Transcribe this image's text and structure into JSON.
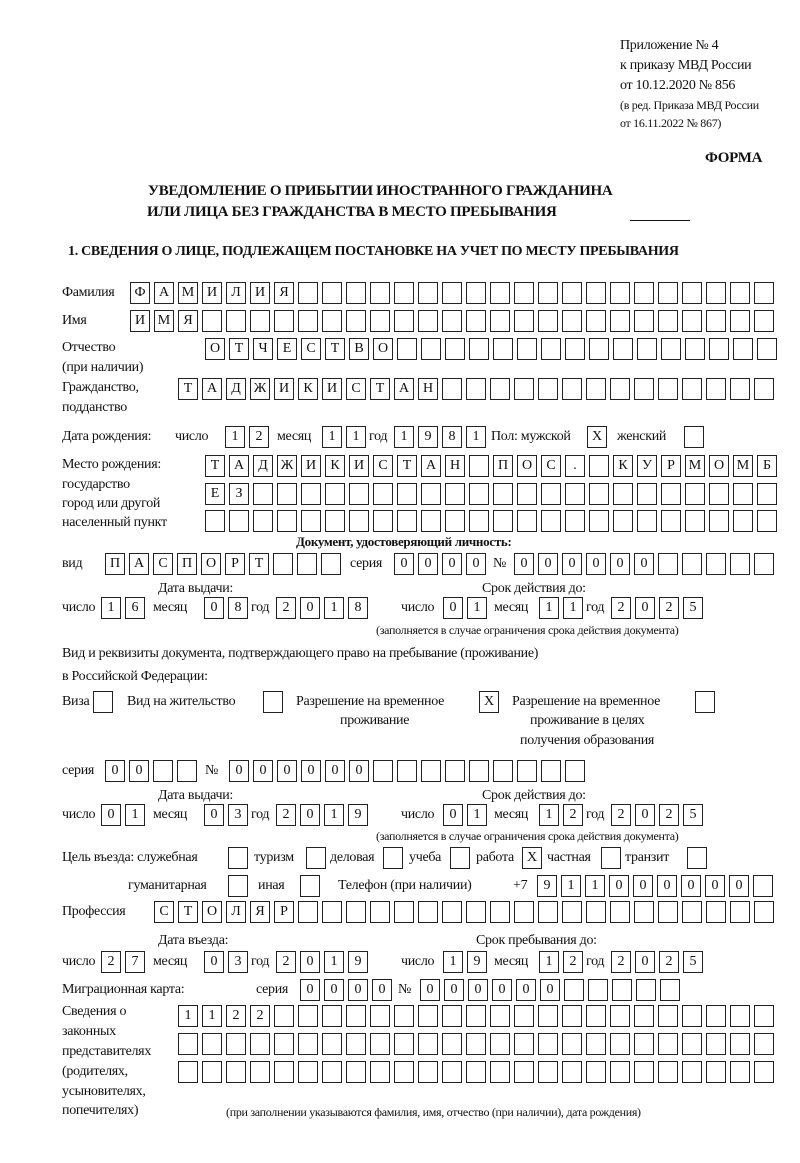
{
  "header": {
    "appendix": "Приложение № 4",
    "order": "к приказу МВД России",
    "order_date": "от 10.12.2020 № 856",
    "edition1": "(в ред. Приказа МВД России",
    "edition2": "от 16.11.2022 № 867)",
    "form_label": "ФОРМА",
    "title1": "УВЕДОМЛЕНИЕ О ПРИБЫТИИ ИНОСТРАННОГО ГРАЖДАНИНА",
    "title2": "ИЛИ ЛИЦА БЕЗ ГРАЖДАНСТВА В МЕСТО ПРЕБЫВАНИЯ",
    "section1": "1. СВЕДЕНИЯ О ЛИЦЕ, ПОДЛЕЖАЩЕМ ПОСТАНОВКЕ НА УЧЕТ ПО МЕСТУ ПРЕБЫВАНИЯ"
  },
  "labels": {
    "surname": "Фамилия",
    "name": "Имя",
    "patronymic": "Отчество",
    "patronymic2": "(при наличии)",
    "citizenship": "Гражданство,",
    "citizenship2": "подданство",
    "birth_date": "Дата рождения:",
    "day": "число",
    "month": "месяц",
    "year": "год",
    "sex_male": "Пол: мужской",
    "sex_female": "женский",
    "birth_place1": "Место рождения:",
    "birth_place2": "государство",
    "birth_place3": "город или другой",
    "birth_place4": "населенный пункт",
    "id_doc": "Документ, удостоверяющий личность:",
    "kind": "вид",
    "series": "серия",
    "number": "№",
    "issue_date": "Дата выдачи:",
    "valid_until": "Срок действия до:",
    "validity_note": "(заполняется в случае ограничения срока действия документа)",
    "residence_doc1": "Вид и реквизиты документа, подтверждающего право на пребывание (проживание)",
    "residence_doc2": "в Российской Федерации:",
    "visa": "Виза",
    "residence_permit": "Вид на жительство",
    "temp_permit1": "Разрешение на временное",
    "temp_permit2": "проживание",
    "temp_edu1": "Разрешение на временное",
    "temp_edu2": "проживание в целях",
    "temp_edu3": "получения образования",
    "purpose": "Цель въезда: служебная",
    "tourism": "туризм",
    "business": "деловая",
    "study": "учеба",
    "work": "работа",
    "private": "частная",
    "transit": "транзит",
    "humanitarian": "гуманитарная",
    "other": "иная",
    "phone": "Телефон (при наличии)",
    "phone_prefix": "+7",
    "profession": "Профессия",
    "entry_date": "Дата въезда:",
    "stay_until": "Срок пребывания до:",
    "migration_card": "Миграционная карта:",
    "rep1": "Сведения о",
    "rep2": "законных",
    "rep3": "представителях",
    "rep4": "(родителях,",
    "rep5": "усыновителях,",
    "rep6": "попечителях)",
    "rep_note": "(при заполнении указываются фамилия, имя, отчество (при наличии), дата рождения)"
  },
  "fields": {
    "surname": "ФАМИЛИЯ",
    "name": "ИМЯ",
    "patronymic": "ОТЧЕСТВО",
    "citizenship": "ТАДЖИКИСТАН",
    "birth_day": "12",
    "birth_month": "11",
    "birth_year": "1981",
    "sex_male": "Х",
    "sex_female": "",
    "birth_place1": "ТАДЖИКИСТАН ПОС. КУРМОМБ",
    "birth_place2": "ЕЗ",
    "birth_place3": "",
    "id_kind": "ПАСПОРТ",
    "id_series": "0000",
    "id_number": "000000",
    "id_issue_day": "16",
    "id_issue_month": "08",
    "id_issue_year": "2018",
    "id_valid_day": "01",
    "id_valid_month": "11",
    "id_valid_year": "2025",
    "visa": "",
    "residence_permit": "",
    "temp_permit": "Х",
    "temp_edu": "",
    "res_series": "00",
    "res_number": "000000",
    "res_issue_day": "01",
    "res_issue_month": "03",
    "res_issue_year": "2019",
    "res_valid_day": "01",
    "res_valid_month": "12",
    "res_valid_year": "2025",
    "purpose_service": "",
    "purpose_tourism": "",
    "purpose_business": "",
    "purpose_study": "",
    "purpose_work": "Х",
    "purpose_private": "",
    "purpose_transit": "",
    "purpose_humanitarian": "",
    "purpose_other": "",
    "phone": "911000000",
    "profession": "СТОЛЯР",
    "entry_day": "27",
    "entry_month": "03",
    "entry_year": "2019",
    "stay_day": "19",
    "stay_month": "12",
    "stay_year": "2025",
    "mc_series": "0000",
    "mc_number": "000000",
    "rep1": "1122",
    "rep2": "",
    "rep3": ""
  }
}
